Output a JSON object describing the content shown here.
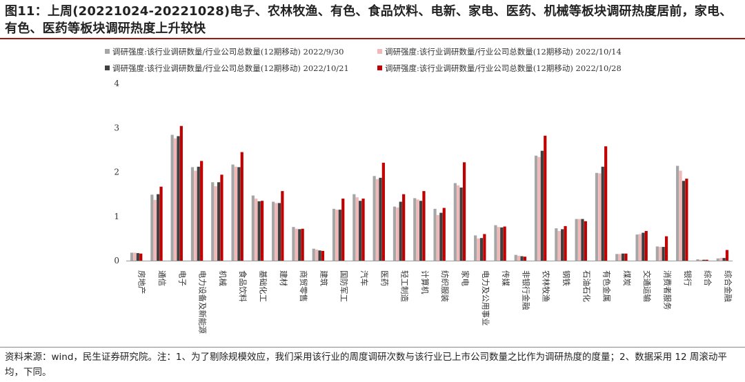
{
  "header": {
    "title": "图11：上周(20221024-20221028)电子、农林牧渔、有色、食品饮料、电新、家电、医药、机械等板块调研热度居前，家电、有色、医药等板块调研热度上升较快"
  },
  "footer": {
    "note": "资料来源：wind，民生证券研究院。注：1、为了剔除规模效应，我们采用该行业的周度调研次数与该行业已上市公司数量之比作为调研热度的度量；2、数据采用 12 周滚动平均，下同。"
  },
  "colors": {
    "series": [
      "#a6a6a6",
      "#f2b8b8",
      "#404040",
      "#c00000"
    ],
    "title_rule": "#a0160f"
  },
  "chart_data": {
    "type": "bar",
    "ylim": [
      0,
      4
    ],
    "yticks": [
      "0",
      "1",
      "2",
      "3",
      "4"
    ],
    "grid": false,
    "legend_position": "top",
    "categories": [
      "房地产",
      "通信",
      "电子",
      "电力设备及新能源",
      "机械",
      "食品饮料",
      "基础化工",
      "建材",
      "商贸零售",
      "建筑",
      "国防军工",
      "汽车",
      "医药",
      "轻工制造",
      "计算机",
      "纺织服装",
      "家电",
      "电力及公用事业",
      "传媒",
      "非银行金融",
      "农林牧渔",
      "钢铁",
      "石油石化",
      "有色金属",
      "煤炭",
      "交通运输",
      "消费者服务",
      "银行",
      "综合",
      "综合金融"
    ],
    "series": [
      {
        "name": "调研强度:该行业调研数量/行业公司总数量(12期移动) 2022/9/30",
        "values": [
          0.18,
          1.49,
          2.84,
          2.11,
          1.77,
          2.17,
          1.47,
          1.33,
          0.76,
          0.27,
          1.17,
          1.5,
          1.91,
          1.22,
          1.41,
          1.17,
          1.75,
          0.57,
          0.8,
          0.13,
          2.37,
          0.73,
          0.94,
          1.98,
          0.15,
          0.59,
          0.32,
          2.14,
          0.03,
          0.05
        ]
      },
      {
        "name": "调研强度:该行业调研数量/行业公司总数量(12期移动) 2022/10/14",
        "values": [
          0.18,
          1.37,
          2.76,
          2.03,
          1.68,
          2.12,
          1.4,
          1.3,
          0.72,
          0.25,
          1.15,
          1.43,
          1.84,
          1.2,
          1.38,
          1.03,
          1.7,
          0.5,
          0.76,
          0.11,
          2.34,
          0.67,
          0.94,
          1.97,
          0.15,
          0.6,
          0.31,
          2.03,
          0.02,
          0.06
        ]
      },
      {
        "name": "调研强度:该行业调研数量/行业公司总数量(12期移动) 2022/10/21",
        "values": [
          0.17,
          1.5,
          2.81,
          2.12,
          1.77,
          2.11,
          1.34,
          1.3,
          0.71,
          0.23,
          1.15,
          1.35,
          1.87,
          1.33,
          1.35,
          1.08,
          1.65,
          0.51,
          0.75,
          0.1,
          2.48,
          0.71,
          0.94,
          2.12,
          0.16,
          0.63,
          0.31,
          1.8,
          0.02,
          0.06
        ]
      },
      {
        "name": "调研强度:该行业调研数量/行业公司总数量(12期移动) 2022/10/28",
        "values": [
          0.16,
          1.67,
          3.04,
          2.25,
          1.94,
          2.45,
          1.35,
          1.57,
          0.72,
          0.22,
          1.4,
          1.4,
          2.21,
          1.5,
          1.57,
          1.19,
          2.22,
          0.6,
          0.77,
          0.09,
          2.82,
          0.78,
          0.89,
          2.58,
          0.16,
          0.67,
          0.55,
          1.85,
          0.02,
          0.24
        ]
      }
    ]
  }
}
